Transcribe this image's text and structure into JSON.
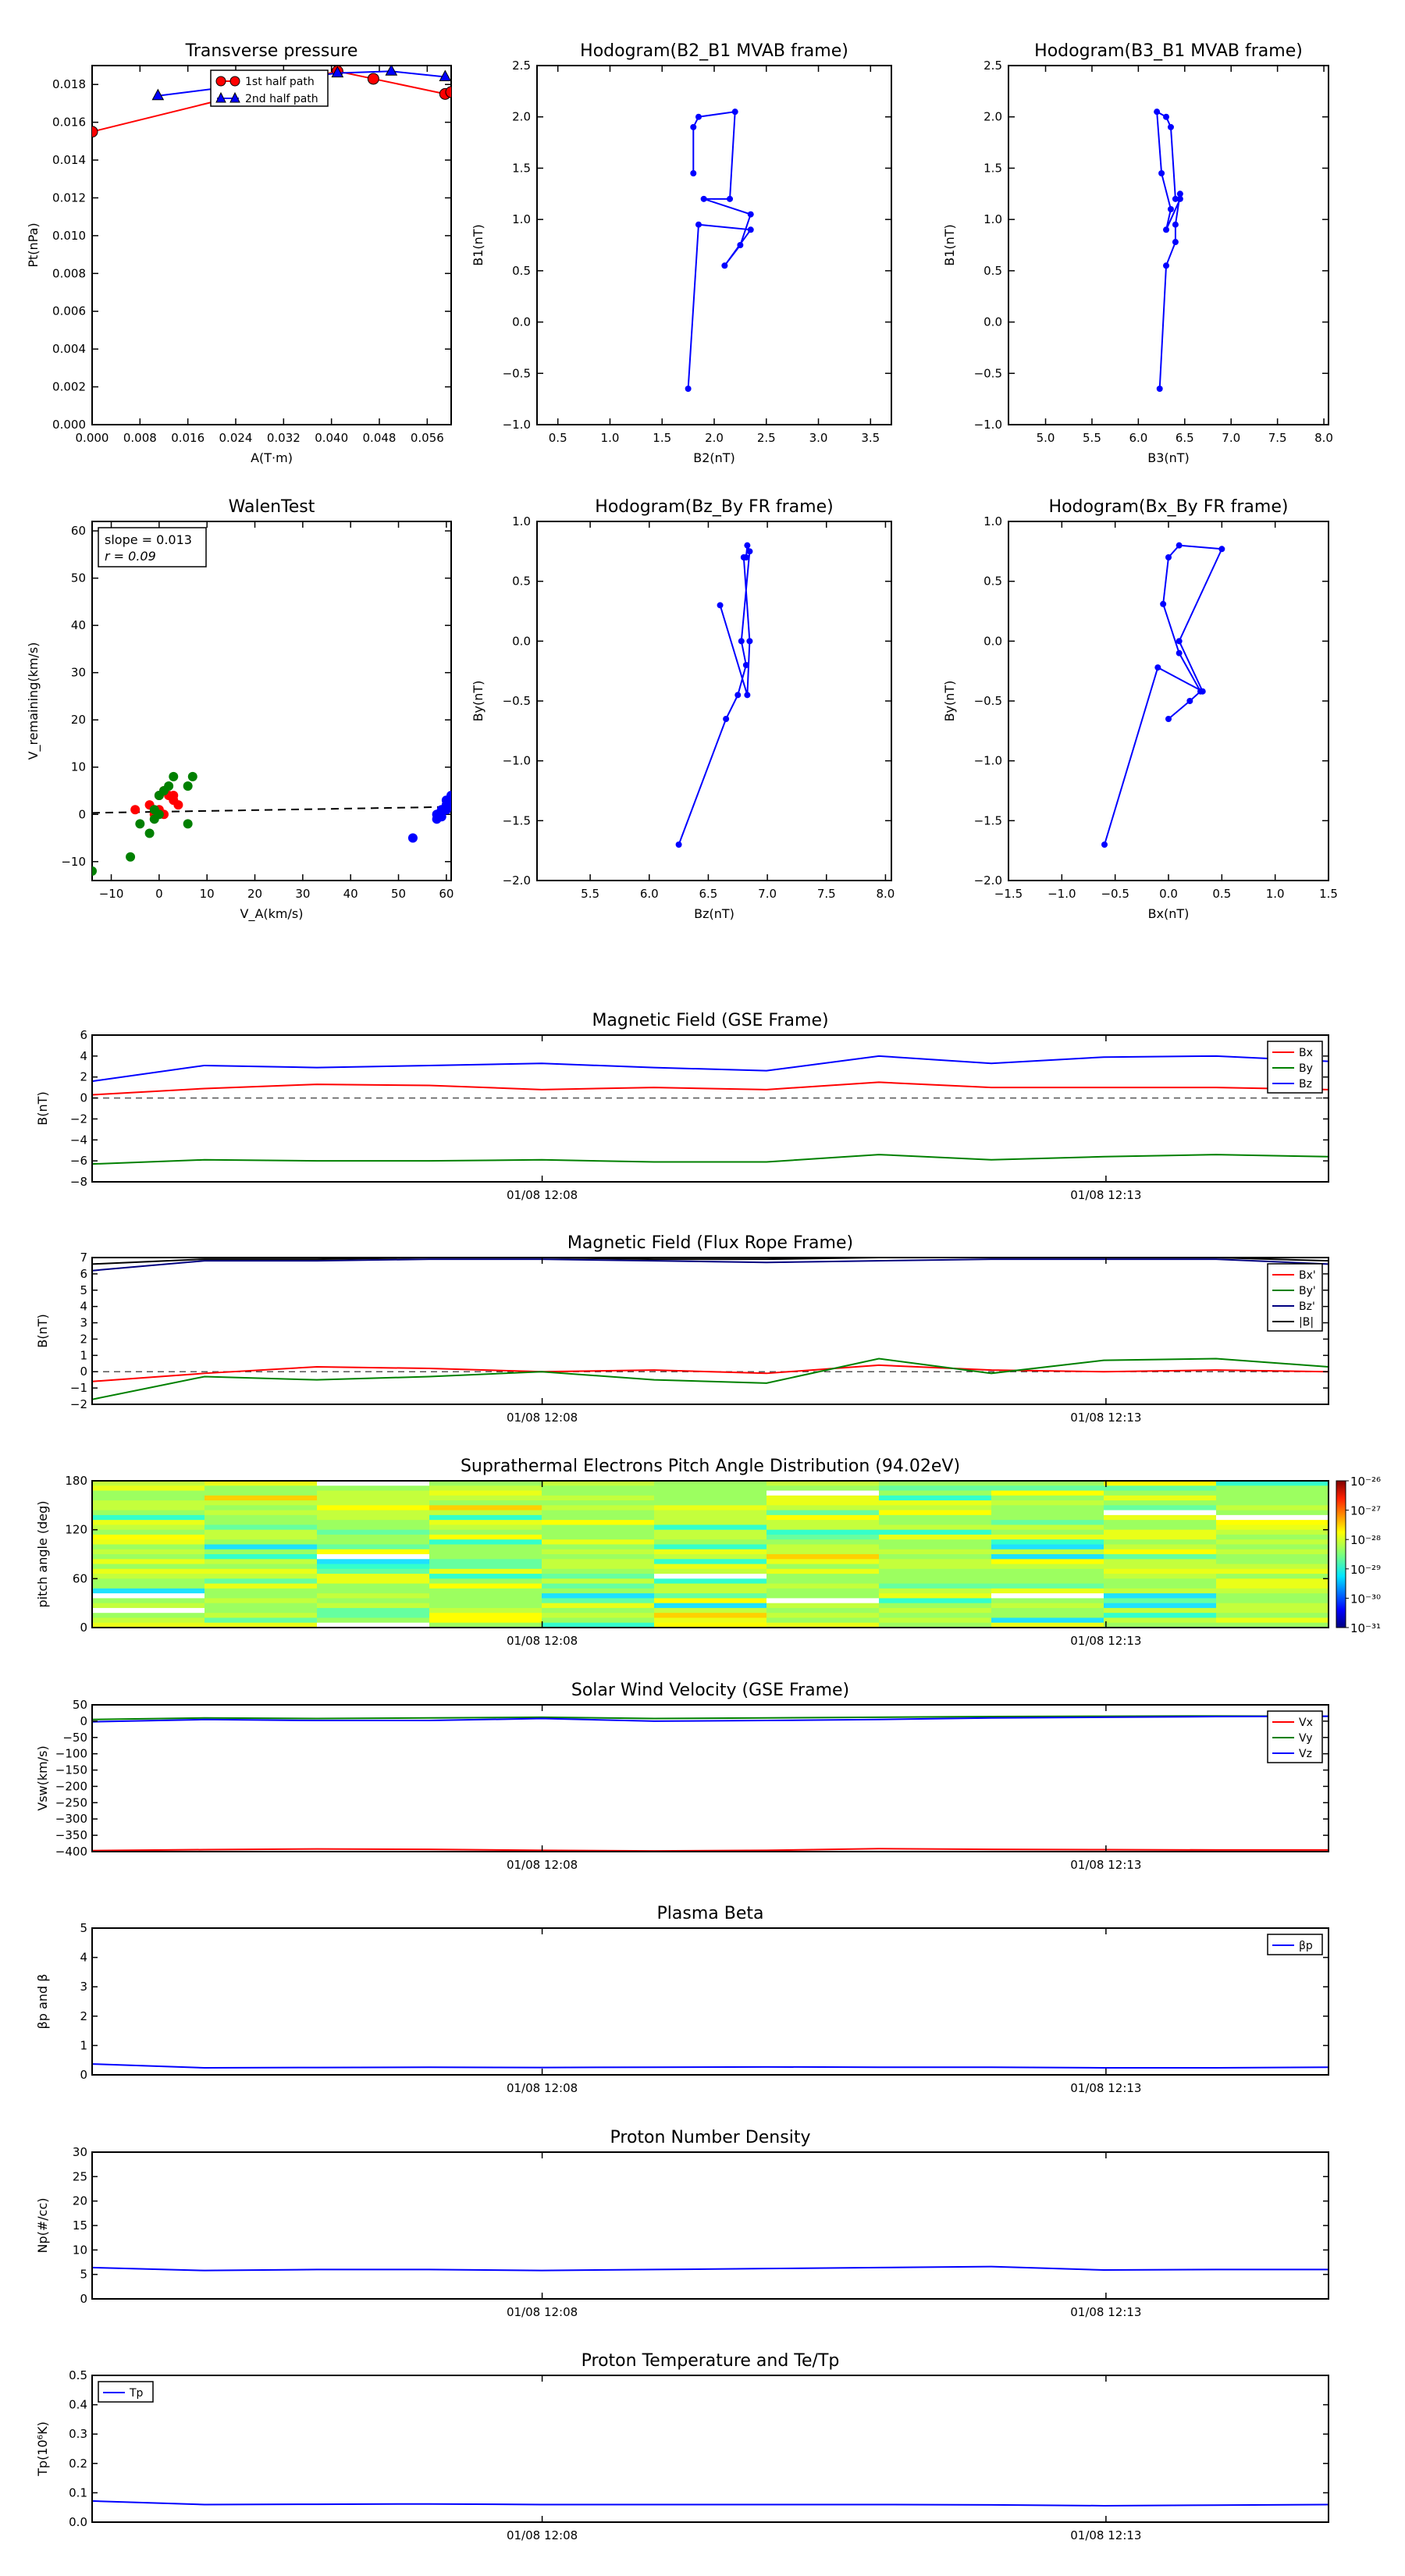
{
  "colors": {
    "red": "#ff0000",
    "green": "#008000",
    "blue": "#0000ff",
    "black": "#000000",
    "dashed": "#555555"
  },
  "scatter_panels": [
    {
      "id": "transverse",
      "title": "Transverse pressure",
      "xlabel": "A(T·m)",
      "ylabel": "Pt(nPa)",
      "xlim": [
        0.0,
        0.06
      ],
      "ylim": [
        0.0,
        0.019
      ],
      "xticks": [
        "0.000",
        "0.008",
        "0.016",
        "0.024",
        "0.032",
        "0.040",
        "0.048",
        "0.056"
      ],
      "yticks": [
        "0.000",
        "0.002",
        "0.004",
        "0.006",
        "0.008",
        "0.010",
        "0.012",
        "0.014",
        "0.016",
        "0.018"
      ],
      "legend": [
        "1st half path",
        "2nd half path"
      ]
    },
    {
      "id": "hodo-b2b1",
      "title": "Hodogram(B2_B1 MVAB frame)",
      "xlabel": "B2(nT)",
      "ylabel": "B1(nT)",
      "xlim": [
        0.3,
        3.7
      ],
      "ylim": [
        -1.0,
        2.5
      ],
      "xticks": [
        "0.5",
        "1.0",
        "1.5",
        "2.0",
        "2.5",
        "3.0",
        "3.5"
      ],
      "yticks": [
        "−1.0",
        "−0.5",
        "0.0",
        "0.5",
        "1.0",
        "1.5",
        "2.0",
        "2.5"
      ]
    },
    {
      "id": "hodo-b3b1",
      "title": "Hodogram(B3_B1 MVAB frame)",
      "xlabel": "B3(nT)",
      "ylabel": "B1(nT)",
      "xlim": [
        4.6,
        8.05
      ],
      "ylim": [
        -1.0,
        2.5
      ],
      "xticks": [
        "5.0",
        "5.5",
        "6.0",
        "6.5",
        "7.0",
        "7.5",
        "8.0"
      ],
      "yticks": [
        "−1.0",
        "−0.5",
        "0.0",
        "0.5",
        "1.0",
        "1.5",
        "2.0",
        "2.5"
      ]
    },
    {
      "id": "walen",
      "title": "WalenTest",
      "xlabel": "V_A(km/s)",
      "ylabel": "V_remaining(km/s)",
      "xlim": [
        -14,
        61
      ],
      "ylim": [
        -14,
        62
      ],
      "xticks": [
        "−10",
        "0",
        "10",
        "20",
        "30",
        "40",
        "50",
        "60"
      ],
      "yticks": [
        "−10",
        "0",
        "10",
        "20",
        "30",
        "40",
        "50",
        "60"
      ],
      "annotation": [
        "slope = 0.013",
        "r = 0.09"
      ]
    },
    {
      "id": "hodo-bzby",
      "title": "Hodogram(Bz_By FR frame)",
      "xlabel": "Bz(nT)",
      "ylabel": "By(nT)",
      "xlim": [
        5.05,
        8.05
      ],
      "ylim": [
        -2.0,
        1.0
      ],
      "xticks": [
        "5.5",
        "6.0",
        "6.5",
        "7.0",
        "7.5",
        "8.0"
      ],
      "yticks": [
        "−2.0",
        "−1.5",
        "−1.0",
        "−0.5",
        "0.0",
        "0.5",
        "1.0"
      ]
    },
    {
      "id": "hodo-bxby",
      "title": "Hodogram(Bx_By FR frame)",
      "xlabel": "Bx(nT)",
      "ylabel": "By(nT)",
      "xlim": [
        -1.5,
        1.5
      ],
      "ylim": [
        -2.0,
        1.0
      ],
      "xticks": [
        "−1.5",
        "−1.0",
        "−0.5",
        "0.0",
        "0.5",
        "1.0",
        "1.5"
      ],
      "yticks": [
        "−2.0",
        "−1.5",
        "−1.0",
        "−0.5",
        "0.0",
        "0.5",
        "1.0"
      ]
    }
  ],
  "ts_panels": [
    {
      "id": "mag-gse",
      "title": "Magnetic Field (GSE Frame)",
      "ylabel": "B(nT)",
      "ylim": [
        -8,
        6
      ],
      "yticks": [
        "−8",
        "−6",
        "−4",
        "−2",
        "0",
        "2",
        "4",
        "6"
      ],
      "legend": [
        "Bx",
        "By",
        "Bz"
      ]
    },
    {
      "id": "mag-fr",
      "title": "Magnetic Field (Flux Rope Frame)",
      "ylabel": "B(nT)",
      "ylim": [
        -2,
        7
      ],
      "yticks": [
        "−2",
        "−1",
        "0",
        "1",
        "2",
        "3",
        "4",
        "5",
        "6",
        "7"
      ],
      "legend": [
        "Bx'",
        "By'",
        "Bz'",
        "|B|"
      ]
    },
    {
      "id": "pad",
      "title": "Suprathermal Electrons Pitch Angle Distribution (94.02eV)",
      "ylabel": "pitch angle (deg)",
      "ylim": [
        0,
        180
      ],
      "yticks": [
        "0",
        "60",
        "120",
        "180"
      ],
      "colorbar_ticks": [
        "10⁻²⁶",
        "10⁻²⁷",
        "10⁻²⁸",
        "10⁻²⁹",
        "10⁻³⁰",
        "10⁻³¹"
      ]
    },
    {
      "id": "vsw",
      "title": "Solar Wind Velocity (GSE Frame)",
      "ylabel": "Vsw(km/s)",
      "ylim": [
        -400,
        50
      ],
      "yticks": [
        "−400",
        "−350",
        "−300",
        "−250",
        "−200",
        "−150",
        "−100",
        "−50",
        "0",
        "50"
      ],
      "legend": [
        "Vx",
        "Vy",
        "Vz"
      ]
    },
    {
      "id": "beta",
      "title": "Plasma Beta",
      "ylabel": "βp and β",
      "ylim": [
        0,
        5
      ],
      "yticks": [
        "0",
        "1",
        "2",
        "3",
        "4",
        "5"
      ],
      "legend": [
        "βp"
      ]
    },
    {
      "id": "np",
      "title": "Proton Number Density",
      "ylabel": "Np(#/cc)",
      "ylim": [
        0,
        30
      ],
      "yticks": [
        "0",
        "5",
        "10",
        "15",
        "20",
        "25",
        "30"
      ]
    },
    {
      "id": "tp",
      "title": "Proton Temperature and Te/Tp",
      "ylabel": "Tp(10⁶K)",
      "ylim": [
        0,
        0.5
      ],
      "yticks": [
        "0.0",
        "0.1",
        "0.2",
        "0.3",
        "0.4",
        "0.5"
      ],
      "legend": [
        "Tp"
      ]
    }
  ],
  "time_axis": {
    "ticks": [
      "01/08 12:08",
      "01/08 12:13"
    ],
    "tick_positions_frac": [
      0.364,
      0.82
    ]
  },
  "chart_data": [
    {
      "type": "scatter",
      "title": "Transverse pressure",
      "xlabel": "A(T·m)",
      "ylabel": "Pt(nPa)",
      "xlim": [
        0,
        0.06
      ],
      "ylim": [
        0,
        0.019
      ],
      "series": [
        {
          "name": "1st half path",
          "x": [
            0.0,
            0.041,
            0.047,
            0.059,
            0.06
          ],
          "y": [
            0.0155,
            0.0187,
            0.0183,
            0.0175,
            0.0176
          ]
        },
        {
          "name": "2nd half path",
          "x": [
            0.011,
            0.041,
            0.05,
            0.059
          ],
          "y": [
            0.0174,
            0.0186,
            0.0187,
            0.0184
          ]
        }
      ]
    },
    {
      "type": "line",
      "title": "Hodogram(B2_B1 MVAB frame)",
      "xlabel": "B2(nT)",
      "ylabel": "B1(nT)",
      "xlim": [
        0.3,
        3.7
      ],
      "ylim": [
        -1,
        2.5
      ],
      "x": [
        1.75,
        1.85,
        2.35,
        2.1,
        2.25,
        2.35,
        1.9,
        2.15,
        2.2,
        1.85,
        1.8,
        1.8
      ],
      "y": [
        -0.65,
        0.95,
        0.9,
        0.55,
        0.75,
        1.05,
        1.2,
        1.2,
        2.05,
        2.0,
        1.9,
        1.45
      ]
    },
    {
      "type": "line",
      "title": "Hodogram(B3_B1 MVAB frame)",
      "xlabel": "B3(nT)",
      "ylabel": "B1(nT)",
      "xlim": [
        4.6,
        8.05
      ],
      "ylim": [
        -1,
        2.5
      ],
      "x": [
        6.23,
        6.3,
        6.4,
        6.4,
        6.45,
        6.45,
        6.3,
        6.35,
        6.25,
        6.2,
        6.3,
        6.35,
        6.4
      ],
      "y": [
        -0.65,
        0.55,
        0.78,
        0.95,
        1.25,
        1.2,
        0.9,
        1.1,
        1.45,
        2.05,
        2.0,
        1.9,
        1.2
      ]
    },
    {
      "type": "scatter",
      "title": "WalenTest",
      "xlabel": "V_A(km/s)",
      "ylabel": "V_remaining(km/s)",
      "xlim": [
        -14,
        61
      ],
      "ylim": [
        -14,
        62
      ],
      "fit": {
        "slope": 0.013,
        "r": 0.09
      },
      "series": [
        {
          "name": "red",
          "x": [
            -5,
            -2,
            0,
            1,
            2,
            3,
            4,
            -1,
            0,
            1,
            3
          ],
          "y": [
            1,
            2,
            4,
            5,
            4,
            3,
            2,
            0,
            1,
            0,
            4
          ]
        },
        {
          "name": "green",
          "x": [
            -14,
            -6,
            -4,
            -2,
            -1,
            0,
            1,
            2,
            3,
            6,
            7,
            6,
            -1,
            0
          ],
          "y": [
            -12,
            -9,
            -2,
            -4,
            -1,
            4,
            5,
            6,
            8,
            6,
            8,
            -2,
            1,
            0
          ]
        },
        {
          "name": "blue",
          "x": [
            53,
            58,
            58,
            59,
            59,
            60,
            60,
            60,
            61,
            61,
            61,
            60
          ],
          "y": [
            -5,
            -1,
            0,
            1,
            -0.5,
            2,
            3,
            1,
            4,
            3,
            2,
            1
          ]
        }
      ]
    },
    {
      "type": "line",
      "title": "Hodogram(Bz_By FR frame)",
      "xlabel": "Bz(nT)",
      "ylabel": "By(nT)",
      "xlim": [
        5.05,
        8.05
      ],
      "ylim": [
        -2,
        1
      ],
      "x": [
        6.25,
        6.65,
        6.75,
        6.82,
        6.78,
        6.85,
        6.83,
        6.82,
        6.8,
        6.85,
        6.83,
        6.6
      ],
      "y": [
        -1.7,
        -0.65,
        -0.45,
        -0.2,
        0.0,
        0.75,
        0.8,
        0.7,
        0.7,
        0.0,
        -0.45,
        0.3
      ]
    },
    {
      "type": "line",
      "title": "Hodogram(Bx_By FR frame)",
      "xlabel": "Bx(nT)",
      "ylabel": "By(nT)",
      "xlim": [
        -1.5,
        1.5
      ],
      "ylim": [
        -2,
        1
      ],
      "x": [
        -0.6,
        -0.1,
        0.32,
        0.1,
        0.5,
        0.1,
        0.0,
        -0.05,
        0.1,
        0.3,
        0.2,
        0.0
      ],
      "y": [
        -1.7,
        -0.22,
        -0.42,
        0.0,
        0.77,
        0.8,
        0.7,
        0.31,
        -0.1,
        -0.42,
        -0.5,
        -0.65
      ]
    },
    {
      "type": "line",
      "title": "Magnetic Field (GSE Frame)",
      "ylabel": "B(nT)",
      "ylim": [
        -8,
        6
      ],
      "x": [
        0,
        1,
        2,
        3,
        4,
        5,
        6,
        7,
        8,
        9,
        10,
        11
      ],
      "series": [
        {
          "name": "Bx",
          "values": [
            0.3,
            0.9,
            1.3,
            1.2,
            0.8,
            1.0,
            0.8,
            1.5,
            1.0,
            1.0,
            1.0,
            0.8
          ]
        },
        {
          "name": "By",
          "values": [
            -6.3,
            -5.9,
            -6.0,
            -6.0,
            -5.9,
            -6.1,
            -6.1,
            -5.4,
            -5.9,
            -5.6,
            -5.4,
            -5.6
          ]
        },
        {
          "name": "Bz",
          "values": [
            1.6,
            3.1,
            2.9,
            3.1,
            3.3,
            2.9,
            2.6,
            4.0,
            3.3,
            3.9,
            4.0,
            3.5
          ]
        }
      ]
    },
    {
      "type": "line",
      "title": "Magnetic Field (Flux Rope Frame)",
      "ylabel": "B(nT)",
      "ylim": [
        -2,
        7
      ],
      "x": [
        0,
        1,
        2,
        3,
        4,
        5,
        6,
        7,
        8,
        9,
        10,
        11
      ],
      "series": [
        {
          "name": "Bx'",
          "values": [
            -0.6,
            -0.1,
            0.3,
            0.2,
            0.0,
            0.1,
            -0.1,
            0.4,
            0.1,
            0.0,
            0.1,
            0.0
          ]
        },
        {
          "name": "By'",
          "values": [
            -1.7,
            -0.3,
            -0.5,
            -0.3,
            0.0,
            -0.5,
            -0.7,
            0.8,
            -0.1,
            0.7,
            0.8,
            0.3
          ]
        },
        {
          "name": "Bz'",
          "values": [
            6.2,
            6.8,
            6.8,
            6.9,
            6.9,
            6.8,
            6.7,
            6.8,
            6.9,
            6.9,
            6.9,
            6.6
          ]
        },
        {
          "name": "|B|",
          "values": [
            6.6,
            6.9,
            6.9,
            7.0,
            7.0,
            6.9,
            6.9,
            7.0,
            7.0,
            7.0,
            7.0,
            6.8
          ]
        }
      ]
    },
    {
      "type": "heatmap",
      "title": "Suprathermal Electrons Pitch Angle Distribution (94.02eV)",
      "ylabel": "pitch angle (deg)",
      "ylim": [
        0,
        180
      ],
      "colorbar": {
        "min_exp": -31,
        "max_exp": -26
      }
    },
    {
      "type": "line",
      "title": "Solar Wind Velocity (GSE Frame)",
      "ylabel": "Vsw(km/s)",
      "ylim": [
        -400,
        50
      ],
      "x": [
        0,
        1,
        2,
        3,
        4,
        5,
        6,
        7,
        8,
        9,
        10,
        11
      ],
      "series": [
        {
          "name": "Vx",
          "values": [
            -397,
            -394,
            -392,
            -393,
            -396,
            -398,
            -396,
            -391,
            -393,
            -394,
            -395,
            -395
          ]
        },
        {
          "name": "Vy",
          "values": [
            5,
            10,
            8,
            10,
            12,
            8,
            10,
            12,
            14,
            15,
            16,
            15
          ]
        },
        {
          "name": "Vz",
          "values": [
            -2,
            5,
            2,
            2,
            8,
            0,
            2,
            5,
            10,
            12,
            14,
            15
          ]
        }
      ]
    },
    {
      "type": "line",
      "title": "Plasma Beta",
      "ylabel": "βp and β",
      "ylim": [
        0,
        5
      ],
      "x": [
        0,
        1,
        2,
        3,
        4,
        5,
        6,
        7,
        8,
        9,
        10,
        11
      ],
      "series": [
        {
          "name": "βp",
          "values": [
            0.37,
            0.24,
            0.25,
            0.26,
            0.25,
            0.26,
            0.27,
            0.26,
            0.26,
            0.24,
            0.24,
            0.26
          ]
        }
      ]
    },
    {
      "type": "line",
      "title": "Proton Number Density",
      "ylabel": "Np(#/cc)",
      "ylim": [
        0,
        30
      ],
      "x": [
        0,
        1,
        2,
        3,
        4,
        5,
        6,
        7,
        8,
        9,
        10,
        11
      ],
      "series": [
        {
          "name": "Np",
          "values": [
            6.4,
            5.8,
            6.0,
            6.0,
            5.8,
            6.0,
            6.2,
            6.4,
            6.6,
            5.9,
            6.0,
            6.0
          ]
        }
      ]
    },
    {
      "type": "line",
      "title": "Proton Temperature and Te/Tp",
      "ylabel": "Tp(10⁶K)",
      "ylim": [
        0,
        0.5
      ],
      "x": [
        0,
        1,
        2,
        3,
        4,
        5,
        6,
        7,
        8,
        9,
        10,
        11
      ],
      "series": [
        {
          "name": "Tp",
          "values": [
            0.072,
            0.06,
            0.061,
            0.062,
            0.06,
            0.06,
            0.06,
            0.06,
            0.059,
            0.056,
            0.058,
            0.06
          ]
        }
      ]
    }
  ]
}
